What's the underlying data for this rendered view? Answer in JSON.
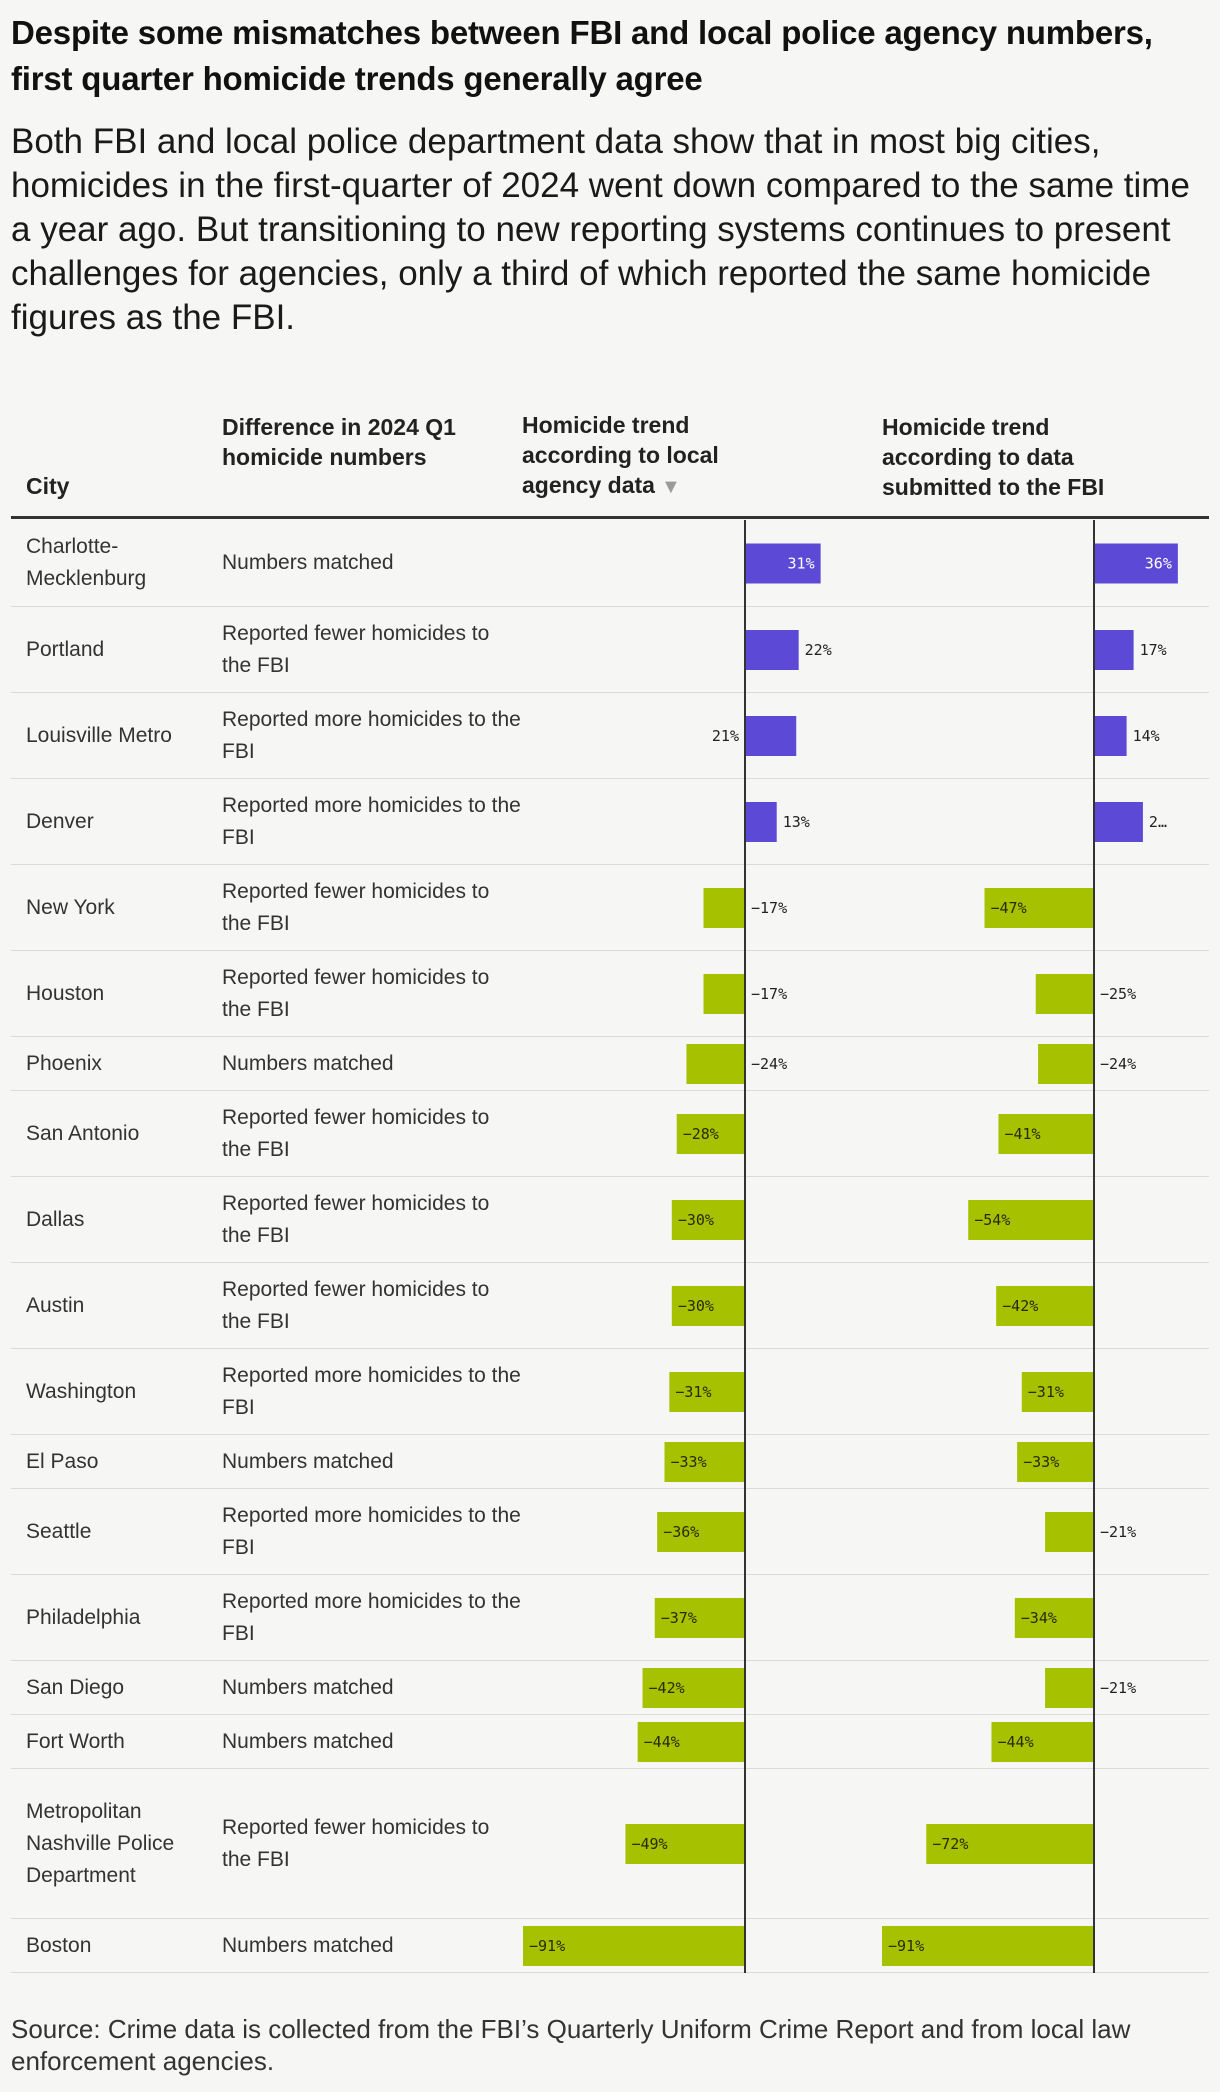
{
  "title": "Despite some mismatches between FBI and local police agency numbers, first quarter homicide trends generally agree",
  "subtitle": "Both FBI and local police department data show that in most big cities, homicides in the first-quarter of 2024 went down compared to the same time a year ago. But transitioning to new reporting systems continues to present challenges for agencies, only a third of which reported the same homicide figures as the FBI.",
  "headers": {
    "city": "City",
    "difference": "Difference in 2024 Q1 homicide numbers",
    "local": "Homicide trend according to local agency data",
    "local_sort_icon": "▼",
    "fbi": "Homicide trend according to data submitted to the FBI"
  },
  "source": "Source: Crime data is collected from the FBI’s Quarterly Uniform Crime Report and from local law enforcement agencies.",
  "colors": {
    "positive": "#5c49d6",
    "negative": "#a6c100",
    "axis": "#333333"
  },
  "chart_data": {
    "type": "bar",
    "orientation": "horizontal",
    "unit": "%",
    "categories": [
      "Charlotte-Mecklenburg",
      "Portland",
      "Louisville Metro",
      "Denver",
      "New York",
      "Houston",
      "Phoenix",
      "San Antonio",
      "Dallas",
      "Austin",
      "Washington",
      "El Paso",
      "Seattle",
      "Philadelphia",
      "San Diego",
      "Fort Worth",
      "Metropolitan Nashville Police Department",
      "Boston"
    ],
    "difference": [
      "Numbers matched",
      "Reported fewer homicides to the FBI",
      "Reported more homicides to the FBI",
      "Reported more homicides to the FBI",
      "Reported fewer homicides to the FBI",
      "Reported fewer homicides to the FBI",
      "Numbers matched",
      "Reported fewer homicides to the FBI",
      "Reported fewer homicides to the FBI",
      "Reported fewer homicides to the FBI",
      "Reported more homicides to the FBI",
      "Numbers matched",
      "Reported more homicides to the FBI",
      "Reported more homicides to the FBI",
      "Numbers matched",
      "Numbers matched",
      "Reported fewer homicides to the FBI",
      "Numbers matched"
    ],
    "series": [
      {
        "name": "Homicide trend according to local agency data",
        "values": [
          31,
          22,
          21,
          13,
          -17,
          -17,
          -24,
          -28,
          -30,
          -30,
          -31,
          -33,
          -36,
          -37,
          -42,
          -44,
          -49,
          -91
        ],
        "labels": [
          "31%",
          "22%",
          "21%",
          "13%",
          "−17%",
          "−17%",
          "−24%",
          "−28%",
          "−30%",
          "−30%",
          "−31%",
          "−33%",
          "−36%",
          "−37%",
          "−42%",
          "−44%",
          "−49%",
          "−91%"
        ]
      },
      {
        "name": "Homicide trend according to data submitted to the FBI",
        "values": [
          36,
          17,
          14,
          21,
          -47,
          -25,
          -24,
          -41,
          -54,
          -42,
          -31,
          -33,
          -21,
          -34,
          -21,
          -44,
          -72,
          -91
        ],
        "labels": [
          "36%",
          "17%",
          "14%",
          "2…",
          "−47%",
          "−25%",
          "−24%",
          "−41%",
          "−54%",
          "−42%",
          "−31%",
          "−33%",
          "−21%",
          "−34%",
          "−21%",
          "−44%",
          "−72%",
          "−91%"
        ]
      }
    ]
  }
}
